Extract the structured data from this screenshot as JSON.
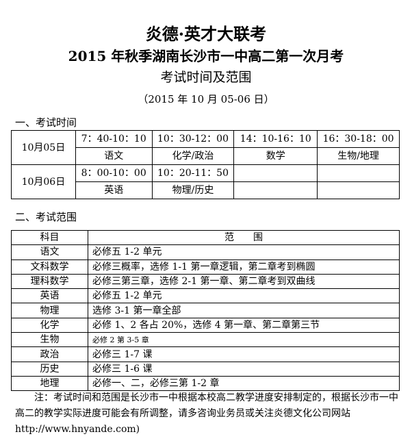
{
  "header": {
    "title": "炎德·英才大联考",
    "subtitle": "2015 年秋季湖南长沙市一中高二第一次月考",
    "doc_type": "考试时间及范围",
    "date": "（2015 年 10 月 05-06 日）"
  },
  "schedule": {
    "heading": "一、考试时间",
    "days": [
      {
        "date": "10月05日",
        "times": [
          "7：40-10：10",
          "10：30-12：00",
          "14：10-16：10",
          "16：30-18：00"
        ],
        "subjects": [
          "语文",
          "化学/政治",
          "数学",
          "生物/地理"
        ]
      },
      {
        "date": "10月06日",
        "times": [
          "8：00-10：00",
          "10：20-11：50",
          "",
          ""
        ],
        "subjects": [
          "英语",
          "物理/历史",
          "",
          ""
        ]
      }
    ]
  },
  "scope": {
    "heading": "二、考试范围",
    "col_subject": "科目",
    "col_scope": "范　　围",
    "rows": [
      {
        "subject": "语文",
        "scope": "必修五 1-2 单元"
      },
      {
        "subject": "文科数学",
        "scope": "必修三概率，选修 1-1 第一章逻辑，第二章考到椭圆"
      },
      {
        "subject": "理科数学",
        "scope": "必修三第三章，选修 2-1 第一章、第二章考到双曲线"
      },
      {
        "subject": "英语",
        "scope": "必修五 1-2 单元"
      },
      {
        "subject": "物理",
        "scope": "选修 3-1 第一章全部"
      },
      {
        "subject": "化学",
        "scope": "必修 1、2 各占 20%，选修 4 第一章、第二章第三节"
      },
      {
        "subject": "生物",
        "scope": "必修 2 第 3-5 章"
      },
      {
        "subject": "政治",
        "scope": "必修三 1-7 课"
      },
      {
        "subject": "历史",
        "scope": "必修三 1-6 课"
      },
      {
        "subject": "地理",
        "scope": "必修一、二，必修三第 1-2 章"
      }
    ]
  },
  "note": {
    "text": "注：考试时间和范围是长沙市一中根据本校高二教学进度安排制定的，根据长沙市一中高二的教学实际进度可能会有所调整，请多咨询业务员或关注炎德文化公司网站",
    "url": "http://www.hnyande.com)"
  }
}
